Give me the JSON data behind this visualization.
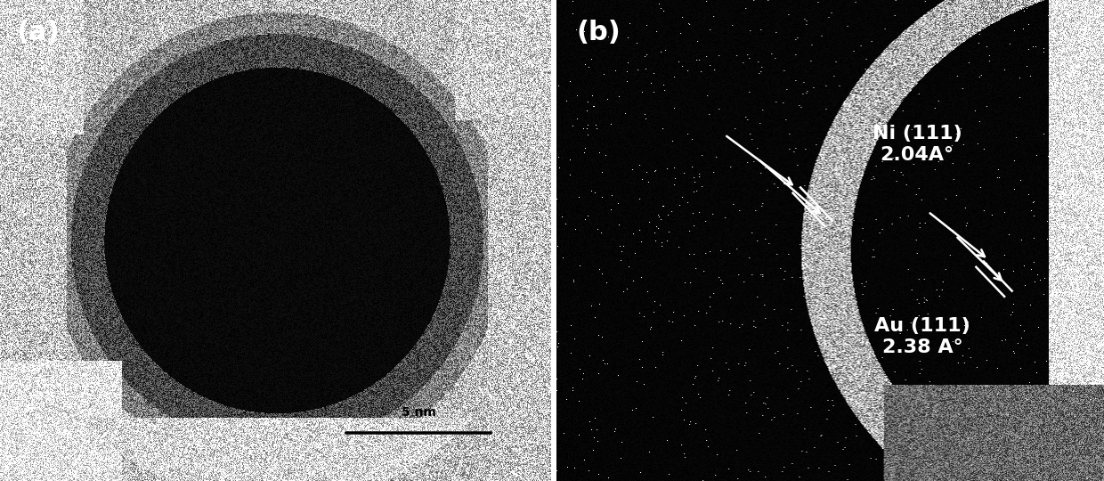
{
  "fig_width": 12.4,
  "fig_height": 5.4,
  "dpi": 100,
  "panel_a_label": "(a)",
  "panel_b_label": "(b)",
  "label_fontsize": 22,
  "label_fontweight": "bold",
  "label_color": "white",
  "background_color": "black",
  "scalebar_text": "5 nm",
  "ni_label_line1": "Ni (111)",
  "ni_label_line2": "2.04A°",
  "au_label_line1": "Au (111)",
  "au_label_line2": "2.38 A°",
  "annotation_color": "white",
  "annotation_fontsize": 16,
  "annotation_fontweight": "bold"
}
